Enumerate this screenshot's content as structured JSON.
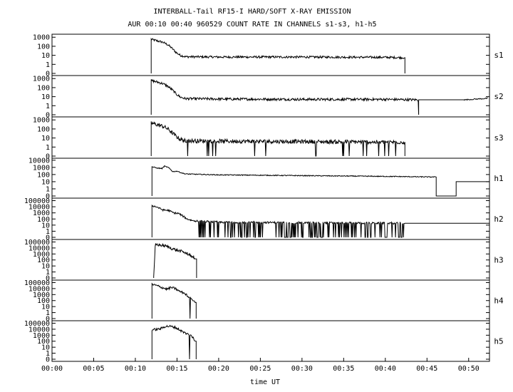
{
  "title_line1": "INTERBALL-Tail RF15-I HARD/SOFT X-RAY EMISSION",
  "title_line2": "AUR 00:10 00:40 960529  COUNT RATE IN CHANNELS s1-s3, h1-h5",
  "chart_data": {
    "type": "line",
    "xlabel": "time UT",
    "x_unit": "minutes UT",
    "xlim": [
      0,
      52.5
    ],
    "x_ticks": [
      0,
      5,
      10,
      15,
      20,
      25,
      30,
      35,
      40,
      45,
      50
    ],
    "x_tick_labels": [
      "00:00",
      "00:05",
      "00:10",
      "00:15",
      "00:20",
      "00:25",
      "00:30",
      "00:35",
      "00:40",
      "00:45",
      "00:50"
    ],
    "yscale": "log",
    "grid": false,
    "panels": [
      {
        "name": "s1",
        "ylim": [
          0.1,
          1500
        ],
        "y_ticks": [
          0.1,
          1,
          10,
          100,
          1000
        ],
        "y_tick_labels": [
          "0",
          "1",
          "10",
          "100",
          "1000"
        ],
        "profile": [
          [
            11.9,
            600
          ],
          [
            12.6,
            400
          ],
          [
            13.3,
            280
          ],
          [
            13.9,
            150
          ],
          [
            14.4,
            60
          ],
          [
            14.9,
            20
          ],
          [
            15.4,
            10
          ],
          [
            16.0,
            7
          ],
          [
            20.0,
            6.5
          ],
          [
            30.0,
            6.5
          ],
          [
            40.0,
            6
          ],
          [
            42.3,
            5.5
          ]
        ],
        "noise": 0.12,
        "dips": 0,
        "cutoff": 42.35,
        "cutoff_to": 0.1,
        "late": null
      },
      {
        "name": "s2",
        "ylim": [
          0.1,
          1500
        ],
        "y_ticks": [
          0.1,
          1,
          10,
          100,
          1000
        ],
        "y_tick_labels": [
          "0",
          "1",
          "10",
          "100",
          "1000"
        ],
        "profile": [
          [
            11.9,
            600
          ],
          [
            12.6,
            420
          ],
          [
            13.3,
            280
          ],
          [
            13.9,
            140
          ],
          [
            14.4,
            60
          ],
          [
            14.9,
            20
          ],
          [
            15.4,
            9
          ],
          [
            16.0,
            6
          ],
          [
            20.0,
            5.5
          ],
          [
            30.0,
            5
          ],
          [
            40.0,
            5
          ],
          [
            44.0,
            4.5
          ]
        ],
        "noise": 0.14,
        "dips": 0,
        "cutoff": null,
        "cutoff_to": null,
        "late": {
          "start": 44.0,
          "end": 49.5,
          "flat": 4.5,
          "rise_end": 52.3,
          "rise_to": 6.5
        }
      },
      {
        "name": "s3",
        "ylim": [
          0.1,
          1500
        ],
        "y_ticks": [
          0.1,
          1,
          10,
          100,
          1000
        ],
        "y_tick_labels": [
          "0",
          "1",
          "10",
          "100",
          "1000"
        ],
        "profile": [
          [
            11.9,
            450
          ],
          [
            12.6,
            300
          ],
          [
            13.3,
            200
          ],
          [
            13.9,
            100
          ],
          [
            14.4,
            40
          ],
          [
            14.9,
            15
          ],
          [
            15.4,
            7
          ],
          [
            16.0,
            5
          ],
          [
            20.0,
            4.5
          ],
          [
            30.0,
            4
          ],
          [
            40.0,
            3.5
          ],
          [
            42.3,
            3.5
          ]
        ],
        "noise": 0.22,
        "dips": 0.04,
        "cutoff": 42.35,
        "cutoff_to": 0.1,
        "late": null
      },
      {
        "name": "h1",
        "ylim": [
          0.1,
          12000
        ],
        "y_ticks": [
          0.1,
          1,
          10,
          100,
          1000,
          10000
        ],
        "y_tick_labels": [
          "0",
          "1",
          "10",
          "100",
          "1000",
          "10000"
        ],
        "profile": [
          [
            12.0,
            1200
          ],
          [
            12.6,
            800
          ],
          [
            13.2,
            700
          ],
          [
            13.5,
            1500
          ],
          [
            14.0,
            900
          ],
          [
            14.5,
            250
          ],
          [
            15.0,
            300
          ],
          [
            15.5,
            180
          ],
          [
            16.0,
            120
          ],
          [
            20.0,
            90
          ],
          [
            30.0,
            70
          ],
          [
            40.0,
            55
          ],
          [
            46.0,
            45
          ]
        ],
        "noise": 0.06,
        "dips": 0,
        "cutoff": 46.1,
        "cutoff_to": 0.1,
        "late": {
          "start": 48.5,
          "end": 52.5,
          "flat": 10,
          "rise_end": 52.5,
          "rise_to": 9
        }
      },
      {
        "name": "h2",
        "ylim": [
          0.1,
          150000
        ],
        "y_ticks": [
          0.1,
          1,
          10,
          100,
          1000,
          10000,
          100000
        ],
        "y_tick_labels": [
          "0",
          "1",
          "10",
          "100",
          "1000",
          "10000",
          "100000"
        ],
        "profile": [
          [
            12.0,
            15000
          ],
          [
            12.6,
            9000
          ],
          [
            13.3,
            3000
          ],
          [
            14.0,
            2500
          ],
          [
            14.6,
            1000
          ],
          [
            15.2,
            800
          ],
          [
            15.7,
            300
          ],
          [
            16.2,
            100
          ],
          [
            17.0,
            50
          ],
          [
            20.0,
            30
          ],
          [
            30.0,
            25
          ],
          [
            42.3,
            20
          ]
        ],
        "noise": 0.15,
        "dips": 0.25,
        "dip_start": 17.5,
        "cutoff": 42.35,
        "cutoff_to": 20,
        "late": {
          "start": 42.35,
          "end": 52.5,
          "flat": 20,
          "rise_end": 52.5,
          "rise_to": 20
        }
      },
      {
        "name": "h3",
        "ylim": [
          0.1,
          150000
        ],
        "y_ticks": [
          0.1,
          1,
          10,
          100,
          1000,
          10000,
          100000
        ],
        "y_tick_labels": [
          "0",
          "1",
          "10",
          "100",
          "1000",
          "10000",
          "100000"
        ],
        "profile": [
          [
            12.2,
            0.1
          ],
          [
            12.4,
            40000
          ],
          [
            13.0,
            30000
          ],
          [
            13.7,
            20000
          ],
          [
            14.3,
            9000
          ],
          [
            15.0,
            4000
          ],
          [
            15.6,
            2500
          ],
          [
            16.2,
            1200
          ],
          [
            16.6,
            600
          ],
          [
            17.0,
            300
          ],
          [
            17.3,
            150
          ]
        ],
        "noise": 0.25,
        "dips": 0.05,
        "cutoff": 17.35,
        "cutoff_to": 0.1,
        "late": null
      },
      {
        "name": "h4",
        "ylim": [
          0.1,
          150000
        ],
        "y_ticks": [
          0.1,
          1,
          10,
          100,
          1000,
          10000,
          100000
        ],
        "y_tick_labels": [
          "0",
          "1",
          "10",
          "100",
          "1000",
          "10000",
          "100000"
        ],
        "profile": [
          [
            12.0,
            50000
          ],
          [
            12.6,
            30000
          ],
          [
            13.2,
            15000
          ],
          [
            13.8,
            8000
          ],
          [
            14.3,
            15000
          ],
          [
            14.8,
            10000
          ],
          [
            15.3,
            3500
          ],
          [
            15.8,
            2000
          ],
          [
            16.3,
            600
          ],
          [
            16.8,
            200
          ],
          [
            17.2,
            50
          ]
        ],
        "noise": 0.2,
        "dips": 0.06,
        "cutoff": 17.3,
        "cutoff_to": 0.1,
        "late": null
      },
      {
        "name": "h5",
        "ylim": [
          0.1,
          150000
        ],
        "y_ticks": [
          0.1,
          1,
          10,
          100,
          1000,
          10000,
          100000
        ],
        "y_tick_labels": [
          "0",
          "1",
          "10",
          "100",
          "1000",
          "10000",
          "100000"
        ],
        "profile": [
          [
            12.0,
            8000
          ],
          [
            12.5,
            9000
          ],
          [
            13.0,
            12000
          ],
          [
            13.6,
            30000
          ],
          [
            14.2,
            30000
          ],
          [
            14.8,
            20000
          ],
          [
            15.3,
            8000
          ],
          [
            15.8,
            3000
          ],
          [
            16.3,
            1500
          ],
          [
            16.8,
            600
          ],
          [
            17.2,
            100
          ]
        ],
        "noise": 0.2,
        "dips": 0.04,
        "cutoff": 17.3,
        "cutoff_to": 0.1,
        "late": null
      }
    ]
  }
}
